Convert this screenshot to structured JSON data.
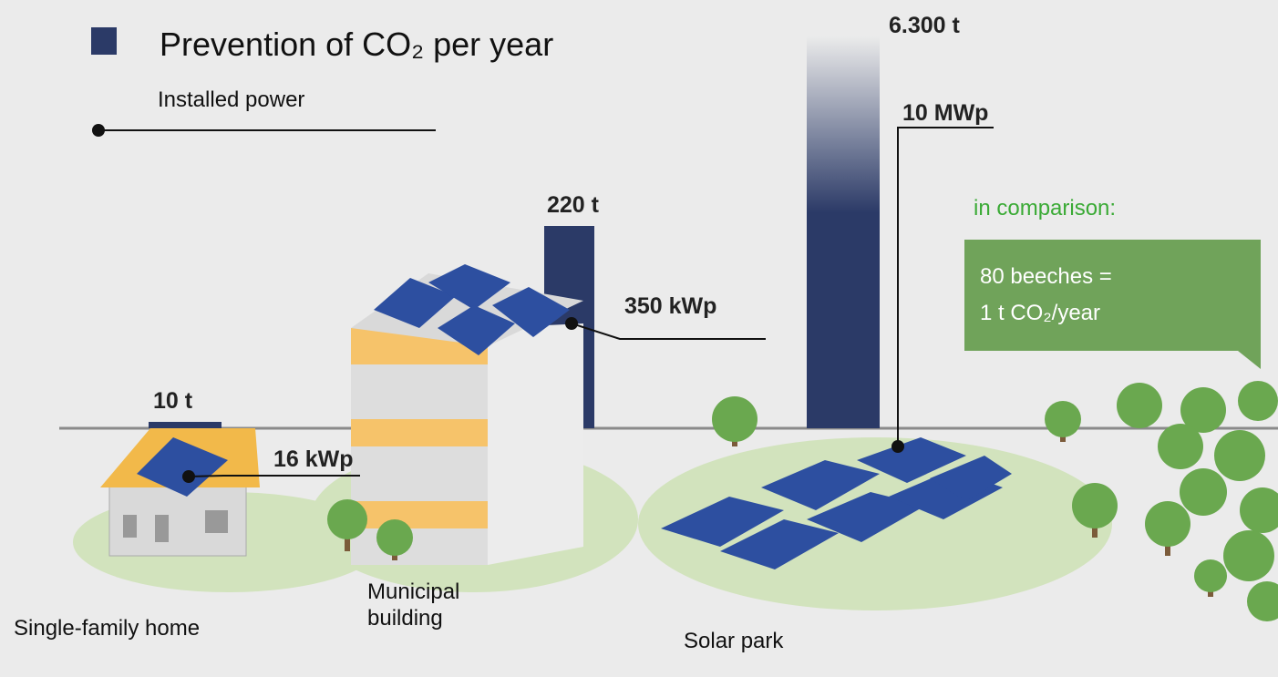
{
  "legend": {
    "co2": "Prevention of CO₂ per year",
    "power": "Installed power"
  },
  "items": [
    {
      "name": "Single-family home",
      "co2": "10 t",
      "power": "16 kWp"
    },
    {
      "name": "Municipal building",
      "co2": "220 t",
      "power": "350 kWp"
    },
    {
      "name": "Solar park",
      "co2": "6.300 t",
      "power": "10 MWp"
    }
  ],
  "comparison": {
    "title": "in comparison:",
    "lines": [
      "80 beeches =",
      "1 t CO₂/year"
    ]
  }
}
